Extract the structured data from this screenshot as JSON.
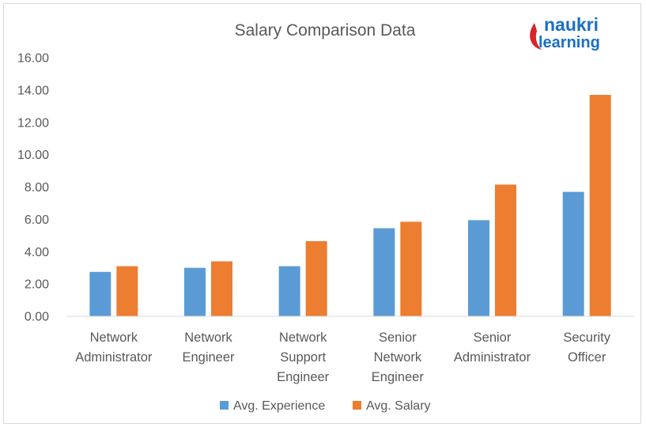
{
  "logo": {
    "line1": "naukri",
    "line2": "learning",
    "mark_color": "#d8232a",
    "text_color": "#1a6fc4"
  },
  "chart_data": {
    "type": "bar",
    "title": "Salary Comparison Data",
    "categories": [
      [
        "Network",
        "Administrator"
      ],
      [
        "Network",
        "Engineer"
      ],
      [
        "Network",
        "Support",
        "Engineer"
      ],
      [
        "Senior",
        "Network",
        "Engineer"
      ],
      [
        "Senior",
        "Administrator"
      ],
      [
        "Security",
        "Officer"
      ]
    ],
    "series": [
      {
        "name": "Avg. Experience",
        "color": "#5b9bd5",
        "values": [
          2.75,
          3.0,
          3.1,
          5.45,
          5.95,
          7.7
        ]
      },
      {
        "name": "Avg. Salary",
        "color": "#ed7d31",
        "values": [
          3.1,
          3.4,
          4.65,
          5.85,
          8.15,
          13.7
        ]
      }
    ],
    "yticks": [
      "0.00",
      "2.00",
      "4.00",
      "6.00",
      "8.00",
      "10.00",
      "12.00",
      "14.00",
      "16.00"
    ],
    "ylim": [
      0,
      16
    ],
    "gridlines": false,
    "legend_position": "bottom"
  }
}
